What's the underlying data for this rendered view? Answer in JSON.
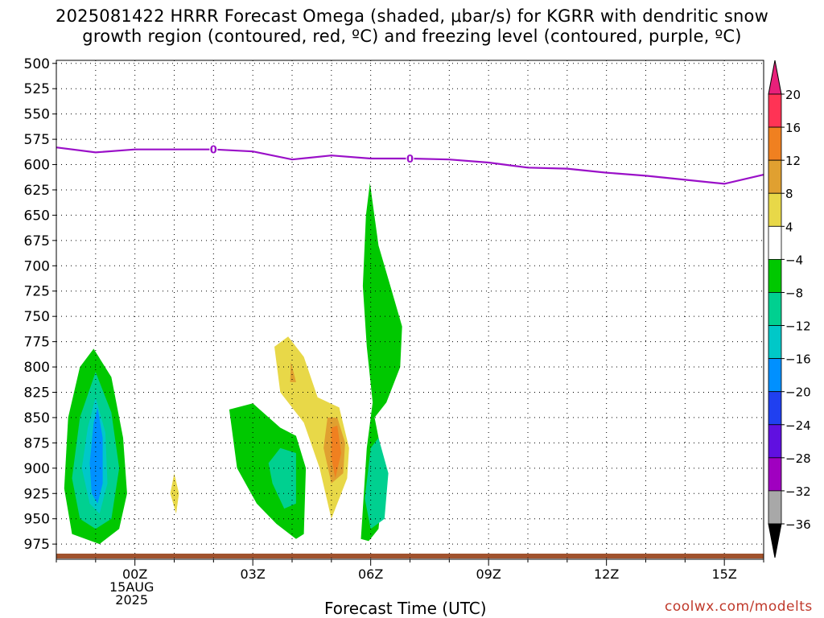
{
  "title": {
    "line1": "2025081422 HRRR Forecast Omega (shaded, μbar/s) for KGRR with dendritic snow",
    "line2": "growth region (contoured, red, ºC) and freezing level (contoured, purple, ºC)"
  },
  "xaxis_label": "Forecast Time (UTC)",
  "credit": "coolwx.com/modelts",
  "chart_data": {
    "type": "heatmap",
    "y_pressure_ticks": [
      500,
      525,
      550,
      575,
      600,
      625,
      650,
      675,
      700,
      725,
      750,
      775,
      800,
      825,
      850,
      875,
      900,
      925,
      950,
      975
    ],
    "x_ticks": [
      {
        "hour": 0,
        "label": "00Z",
        "sub1": "15AUG",
        "sub2": "2025"
      },
      {
        "hour": 3,
        "label": "03Z"
      },
      {
        "hour": 6,
        "label": "06Z"
      },
      {
        "hour": 9,
        "label": "09Z"
      },
      {
        "hour": 12,
        "label": "12Z"
      },
      {
        "hour": 15,
        "label": "15Z"
      }
    ],
    "xlim_hours": [
      -2,
      16
    ],
    "ylim_pressure": [
      497,
      990
    ],
    "grid": true,
    "colorbar": {
      "labels": [
        "20",
        "16",
        "12",
        "8",
        "4",
        "−4",
        "−8",
        "−12",
        "−16",
        "−20",
        "−24",
        "−28",
        "−32",
        "−36"
      ],
      "colors_top_to_bottom": [
        "#ff3355",
        "#f08020",
        "#e0a030",
        "#e8d848",
        "#ffffff",
        "#00c800",
        "#00d090",
        "#00c8c8",
        "#0090ff",
        "#2040f0",
        "#6010e0",
        "#a000c0",
        "#a8a8a8"
      ],
      "arrow_top_color": "#e8207a",
      "arrow_bottom_color": "#000000"
    },
    "freezing_level": {
      "color": "#9a10c8",
      "label": "0",
      "label_hours": [
        2,
        7
      ],
      "points": [
        [
          -2,
          583
        ],
        [
          -1,
          588
        ],
        [
          0,
          585
        ],
        [
          1,
          585
        ],
        [
          2,
          585
        ],
        [
          3,
          587
        ],
        [
          4,
          595
        ],
        [
          5,
          591
        ],
        [
          6,
          594
        ],
        [
          7,
          594
        ],
        [
          8,
          595
        ],
        [
          9,
          598
        ],
        [
          10,
          603
        ],
        [
          11,
          604
        ],
        [
          12,
          608
        ],
        [
          13,
          611
        ],
        [
          14,
          615
        ],
        [
          15,
          619
        ],
        [
          16,
          610
        ]
      ]
    },
    "omega_regions": [
      {
        "level": "green",
        "color": "#00c800",
        "points": [
          [
            -1.8,
            920
          ],
          [
            -1.7,
            850
          ],
          [
            -1.4,
            800
          ],
          [
            -1.05,
            782
          ],
          [
            -0.6,
            810
          ],
          [
            -0.3,
            870
          ],
          [
            -0.2,
            925
          ],
          [
            -0.4,
            960
          ],
          [
            -0.9,
            975
          ],
          [
            -1.6,
            965
          ]
        ]
      },
      {
        "level": "teal",
        "color": "#00d090",
        "points": [
          [
            -1.6,
            910
          ],
          [
            -1.4,
            850
          ],
          [
            -1.0,
            805
          ],
          [
            -0.6,
            845
          ],
          [
            -0.4,
            900
          ],
          [
            -0.6,
            950
          ],
          [
            -1.0,
            960
          ],
          [
            -1.4,
            950
          ]
        ]
      },
      {
        "level": "cyan",
        "color": "#00c8c8",
        "points": [
          [
            -1.35,
            900
          ],
          [
            -1.2,
            860
          ],
          [
            -1.0,
            830
          ],
          [
            -0.75,
            865
          ],
          [
            -0.7,
            915
          ],
          [
            -0.9,
            945
          ],
          [
            -1.15,
            935
          ]
        ]
      },
      {
        "level": "blue",
        "color": "#0090ff",
        "points": [
          [
            -1.15,
            895
          ],
          [
            -1.05,
            855
          ],
          [
            -0.95,
            840
          ],
          [
            -0.82,
            870
          ],
          [
            -0.82,
            915
          ],
          [
            -0.95,
            935
          ],
          [
            -1.1,
            925
          ]
        ]
      },
      {
        "level": "yellow",
        "color": "#e8d848",
        "points": [
          [
            1.0,
            905
          ],
          [
            1.12,
            925
          ],
          [
            1.05,
            945
          ],
          [
            0.9,
            925
          ]
        ]
      },
      {
        "level": "green",
        "color": "#00c800",
        "points": [
          [
            2.4,
            842
          ],
          [
            3.0,
            836
          ],
          [
            3.7,
            860
          ],
          [
            4.1,
            868
          ],
          [
            4.35,
            900
          ],
          [
            4.3,
            965
          ],
          [
            4.1,
            970
          ],
          [
            3.6,
            955
          ],
          [
            3.1,
            935
          ],
          [
            2.6,
            900
          ]
        ]
      },
      {
        "level": "teal",
        "color": "#00d090",
        "points": [
          [
            3.4,
            895
          ],
          [
            3.7,
            880
          ],
          [
            4.1,
            885
          ],
          [
            4.1,
            935
          ],
          [
            3.8,
            940
          ],
          [
            3.5,
            915
          ]
        ]
      },
      {
        "level": "green",
        "color": "#00c800",
        "points": [
          [
            5.75,
            970
          ],
          [
            5.9,
            880
          ],
          [
            6.05,
            835
          ],
          [
            5.9,
            780
          ],
          [
            5.8,
            720
          ],
          [
            5.88,
            650
          ],
          [
            5.98,
            618
          ],
          [
            6.2,
            680
          ],
          [
            6.5,
            720
          ],
          [
            6.8,
            760
          ],
          [
            6.75,
            800
          ],
          [
            6.4,
            835
          ],
          [
            6.1,
            850
          ],
          [
            6.35,
            900
          ],
          [
            6.2,
            960
          ],
          [
            5.95,
            972
          ]
        ]
      },
      {
        "level": "teal",
        "color": "#00d090",
        "points": [
          [
            5.85,
            930
          ],
          [
            6.0,
            880
          ],
          [
            6.2,
            870
          ],
          [
            6.45,
            905
          ],
          [
            6.35,
            950
          ],
          [
            6.0,
            960
          ]
        ]
      },
      {
        "level": "yellow",
        "color": "#e8d848",
        "points": [
          [
            3.55,
            780
          ],
          [
            3.9,
            770
          ],
          [
            4.3,
            790
          ],
          [
            4.65,
            830
          ],
          [
            5.2,
            840
          ],
          [
            5.45,
            880
          ],
          [
            5.4,
            910
          ],
          [
            5.0,
            950
          ],
          [
            4.7,
            900
          ],
          [
            4.3,
            855
          ],
          [
            3.7,
            825
          ]
        ]
      },
      {
        "level": "gold",
        "color": "#e0a030",
        "points": [
          [
            4.9,
            850
          ],
          [
            5.15,
            850
          ],
          [
            5.35,
            875
          ],
          [
            5.3,
            905
          ],
          [
            5.0,
            915
          ],
          [
            4.8,
            880
          ]
        ]
      },
      {
        "level": "gold",
        "color": "#e0a030",
        "points": [
          [
            3.97,
            795
          ],
          [
            4.1,
            815
          ],
          [
            3.95,
            815
          ]
        ]
      },
      {
        "level": "orange",
        "color": "#f08020",
        "points": [
          [
            5.0,
            860
          ],
          [
            5.15,
            858
          ],
          [
            5.25,
            885
          ],
          [
            5.1,
            910
          ],
          [
            5.0,
            890
          ]
        ]
      }
    ],
    "ground_color": "#a0522d"
  }
}
